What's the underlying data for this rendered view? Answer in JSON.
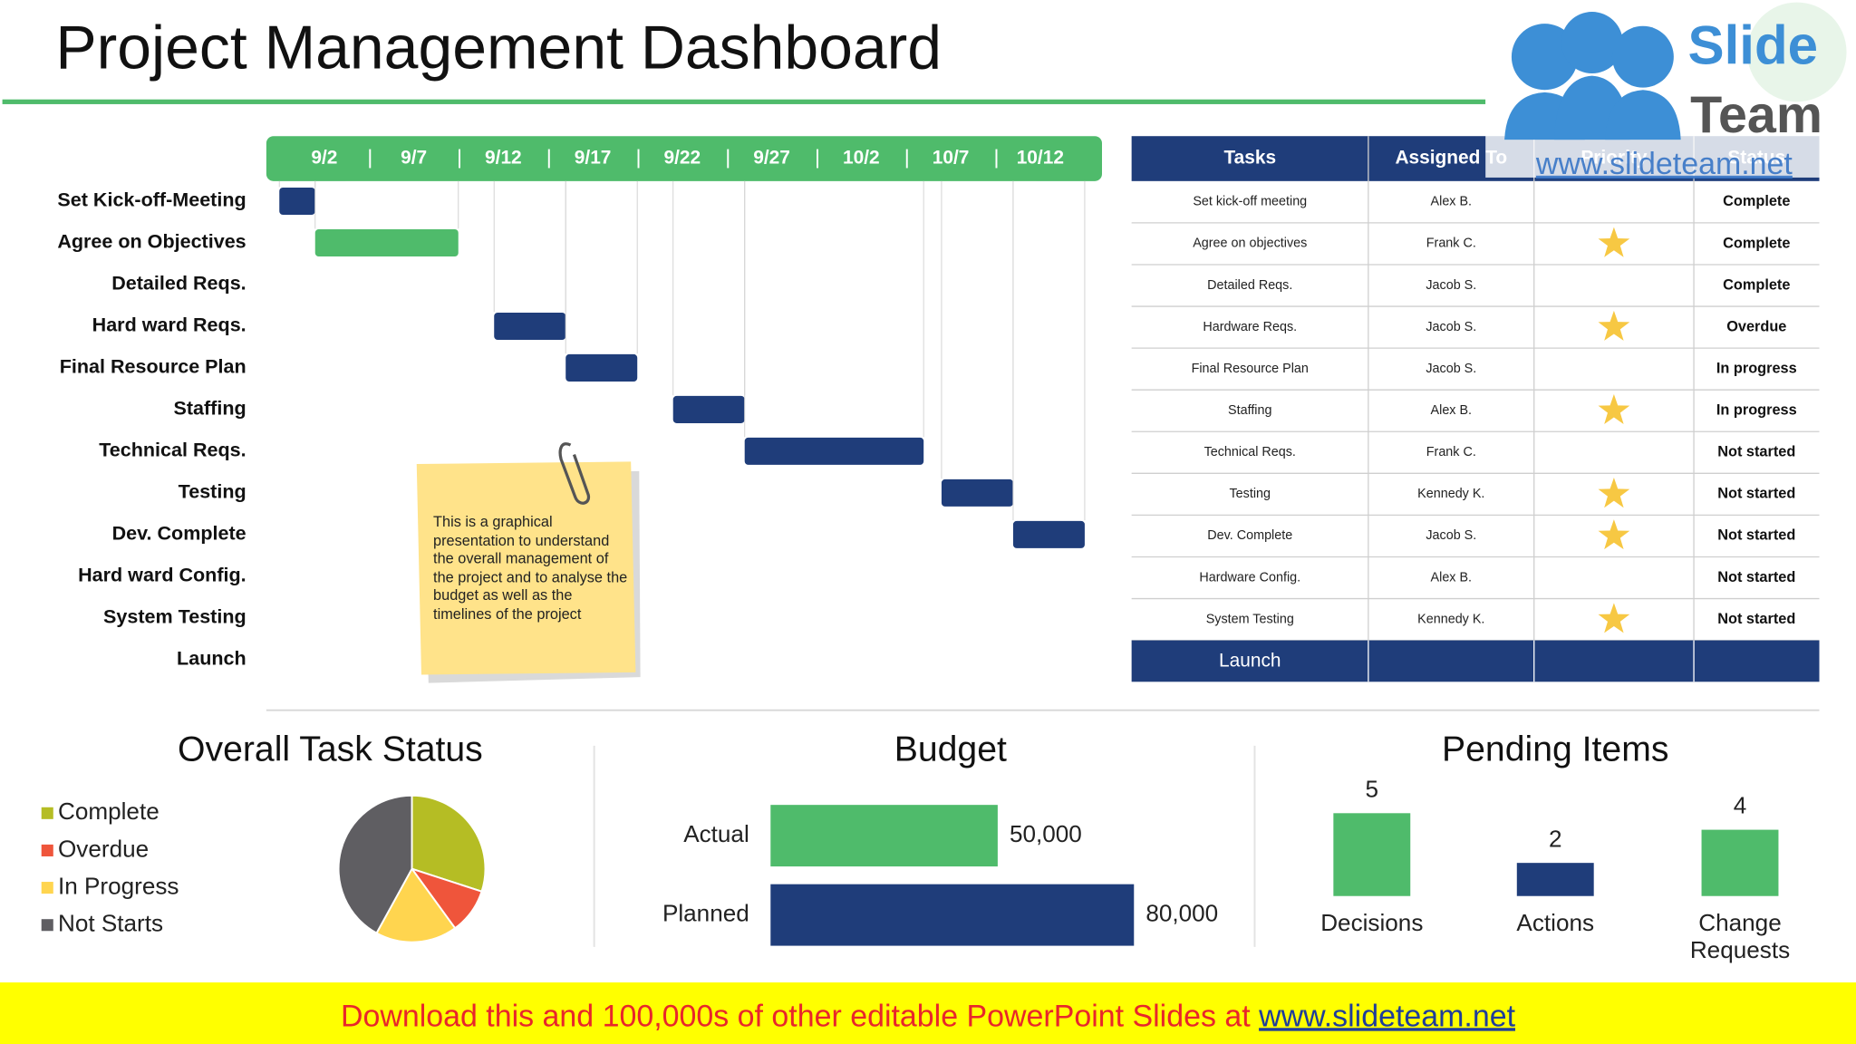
{
  "title": "Project Management Dashboard",
  "logo": {
    "top": "Slide",
    "bottom": "Team",
    "url": "www.slideteam.net"
  },
  "gantt": {
    "dates": [
      "9/2",
      "9/7",
      "9/12",
      "9/17",
      "9/22",
      "9/27",
      "10/2",
      "10/7",
      "10/12"
    ],
    "tasks": [
      {
        "name": "Set Kick-off-Meeting",
        "start": "9/2",
        "end": "9/4",
        "color": "#1f3d7a"
      },
      {
        "name": "Agree on Objectives",
        "start": "9/4",
        "end": "9/12",
        "color": "#4fbb6b"
      },
      {
        "name": "Detailed Reqs.",
        "start": null,
        "end": null,
        "color": null
      },
      {
        "name": "Hard ward Reqs.",
        "start": "9/14",
        "end": "9/18",
        "color": "#1f3d7a"
      },
      {
        "name": "Final Resource Plan",
        "start": "9/18",
        "end": "9/22",
        "color": "#1f3d7a"
      },
      {
        "name": "Staffing",
        "start": "9/24",
        "end": "9/28",
        "color": "#1f3d7a"
      },
      {
        "name": "Technical Reqs.",
        "start": "9/28",
        "end": "10/8",
        "color": "#1f3d7a"
      },
      {
        "name": "Testing",
        "start": "10/9",
        "end": "10/13",
        "color": "#1f3d7a"
      },
      {
        "name": "Dev. Complete",
        "start": "10/13",
        "end": "10/17",
        "color": "#1f3d7a"
      },
      {
        "name": "Hard ward Config.",
        "start": null,
        "end": null,
        "color": null
      },
      {
        "name": "System Testing",
        "start": null,
        "end": null,
        "color": null
      },
      {
        "name": "Launch",
        "start": null,
        "end": null,
        "color": null
      }
    ]
  },
  "note": "This is a graphical presentation to understand the overall management of the project and to analyse the budget as well as the timelines of the project",
  "table": {
    "header": [
      "Tasks",
      "Assigned To",
      "Priority",
      "Status"
    ],
    "rows": [
      [
        "Set kick-off meeting",
        "Alex B.",
        false,
        "Complete"
      ],
      [
        "Agree on objectives",
        "Frank C.",
        true,
        "Complete"
      ],
      [
        "Detailed Reqs.",
        "Jacob S.",
        false,
        "Complete"
      ],
      [
        "Hardware Reqs.",
        "Jacob S.",
        true,
        "Overdue"
      ],
      [
        "Final Resource Plan",
        "Jacob S.",
        false,
        "In progress"
      ],
      [
        "Staffing",
        "Alex B.",
        true,
        "In progress"
      ],
      [
        "Technical Reqs.",
        "Frank C.",
        false,
        "Not started"
      ],
      [
        "Testing",
        "Kennedy K.",
        true,
        "Not started"
      ],
      [
        "Dev. Complete",
        "Jacob S.",
        true,
        "Not started"
      ],
      [
        "Hardware Config.",
        "Alex B.",
        false,
        "Not started"
      ],
      [
        "System Testing",
        "Kennedy K.",
        true,
        "Not started"
      ]
    ],
    "footer": "Launch"
  },
  "chart_data": [
    {
      "type": "pie",
      "title": "Overall Task Status",
      "categories": [
        "Complete",
        "Overdue",
        "In Progress",
        "Not Starts"
      ],
      "values": [
        30,
        10,
        18,
        42
      ],
      "colors": [
        "#b5bd24",
        "#ef553b",
        "#ffd54f",
        "#5f5e62"
      ],
      "legend": "left"
    },
    {
      "type": "bar",
      "orientation": "horizontal",
      "title": "Budget",
      "categories": [
        "Actual",
        "Planned"
      ],
      "values": [
        50000,
        80000
      ],
      "value_labels": [
        "50,000",
        "80,000"
      ],
      "colors": [
        "#4fbb6b",
        "#1f3d7a"
      ]
    },
    {
      "type": "bar",
      "title": "Pending Items",
      "categories": [
        "Decisions",
        "Actions",
        "Change Requests"
      ],
      "values": [
        5,
        2,
        4
      ],
      "colors": [
        "#4fbb6b",
        "#1f3d7a",
        "#4fbb6b"
      ]
    }
  ],
  "footer": {
    "text": "Download this and 100,000s of other editable PowerPoint Slides at ",
    "link": "www.slideteam.net"
  }
}
